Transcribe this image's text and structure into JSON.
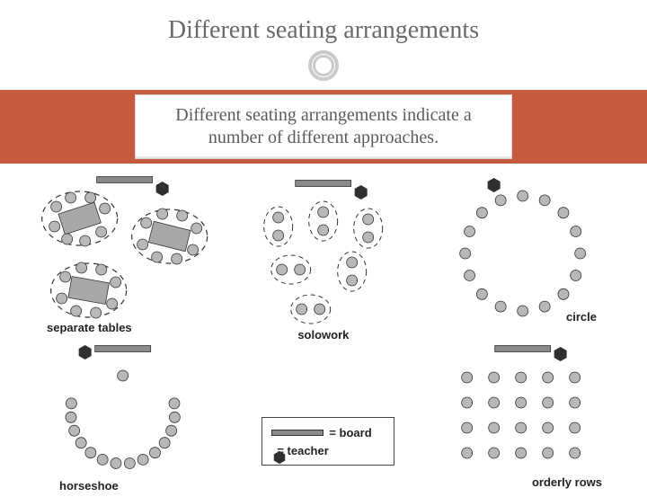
{
  "title": "Different seating arrangements",
  "subtitle": "Different seating arrangements indicate a\nnumber of different approaches.",
  "legend": {
    "board": "= board",
    "teacher": "= teacher"
  },
  "layouts": {
    "separate_tables": {
      "label": "separate tables"
    },
    "solowork": {
      "label": "solowork"
    },
    "circle": {
      "label": "circle"
    },
    "horseshoe": {
      "label": "horseshoe"
    },
    "orderly_rows": {
      "label": "orderly rows"
    }
  },
  "colors": {
    "banner": "#c65a3f",
    "title_text": "#6a6a6a",
    "ring": "#c9c9c9",
    "board_fill": "#8a8a8a",
    "seat_fill": "#b8b8b8",
    "teacher_fill": "#2f2f2f",
    "table_fill": "#a8a8a8",
    "caption": "#222222"
  },
  "shapes": {
    "seat_radius": 6,
    "board": {
      "w": 62,
      "h": 7
    },
    "table": {
      "w": 42,
      "h": 24
    }
  }
}
